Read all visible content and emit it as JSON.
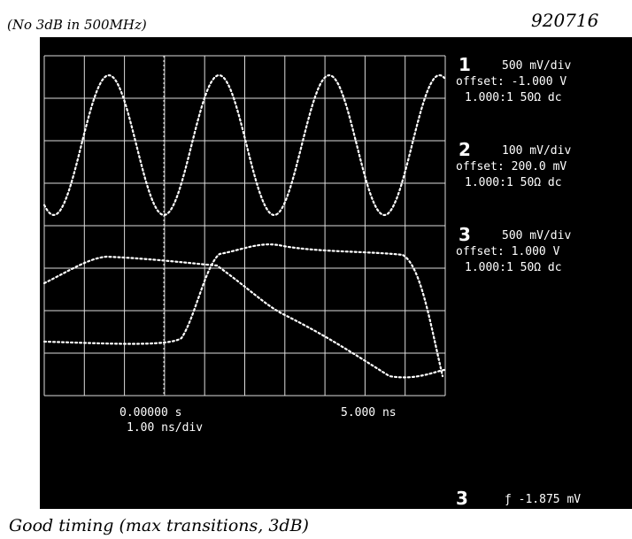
{
  "header": {
    "note": "(No 3dB in 500MHz)",
    "date": "920716"
  },
  "channels": [
    {
      "number": "1",
      "scale": "500 mV/div",
      "offset": "offset: -1.000 V",
      "coupling": "1.000:1 50Ω dc"
    },
    {
      "number": "2",
      "scale": "100 mV/div",
      "offset": "offset: 200.0 mV",
      "coupling": "1.000:1 50Ω dc"
    },
    {
      "number": "3",
      "scale": "500 mV/div",
      "offset": "offset: 1.000 V",
      "coupling": "1.000:1 50Ω dc"
    }
  ],
  "timebase": {
    "start": "0.00000 s",
    "end": "5.000 ns",
    "scale": "1.00 ns/div"
  },
  "trigger": {
    "channel": "3",
    "level": "ƒ -1.875 mV"
  },
  "footer": {
    "note": "Good timing (max transitions, 3dB)"
  }
}
